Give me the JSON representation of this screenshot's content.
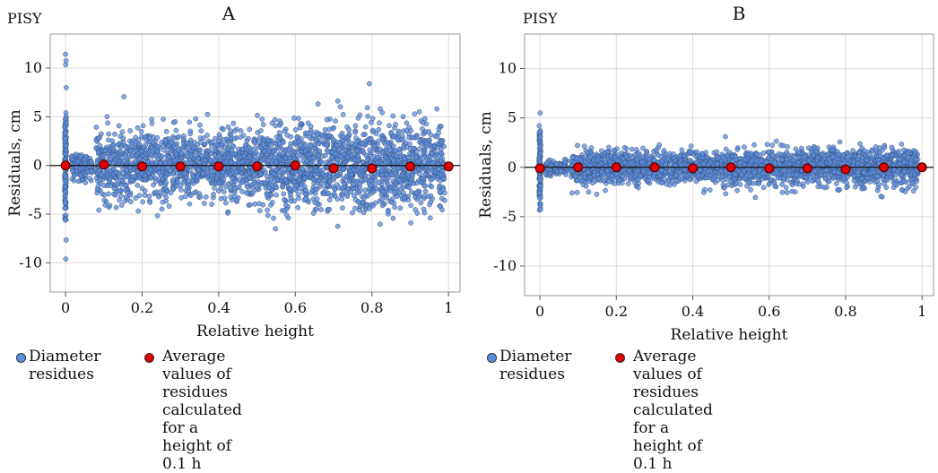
{
  "chart_data": [
    {
      "type": "scatter",
      "panel_label": "A",
      "corner_label": "PISY",
      "xlabel": "Relative height",
      "ylabel": "Residuals, cm",
      "xlim": [
        -0.04,
        1.03
      ],
      "ylim": [
        -13,
        13.5
      ],
      "xticks": [
        0,
        0.2,
        0.4,
        0.6,
        0.8,
        1
      ],
      "xtick_labels": [
        "0",
        "0.2",
        "0.4",
        "0.6",
        "0.8",
        "1"
      ],
      "yticks": [
        -10,
        -5,
        0,
        5,
        10
      ],
      "ytick_labels": [
        "-10",
        "-5",
        "0",
        "5",
        "10"
      ],
      "grid": true,
      "series": [
        {
          "name": "Diameter residues",
          "color": "#5b8ee0",
          "spread": {
            "base_band": [
              -11.8,
              11.7
            ],
            "sd_low": 0.9,
            "sd_mid": 1.8,
            "sd_high": 2.2,
            "n": 2600
          }
        },
        {
          "name": "Average values of residues calculated for a height of 0.1 h",
          "color": "#e00000",
          "x": [
            0,
            0.1,
            0.2,
            0.3,
            0.4,
            0.5,
            0.6,
            0.7,
            0.8,
            0.9,
            1.0
          ],
          "y": [
            0.0,
            0.1,
            -0.1,
            -0.1,
            -0.1,
            -0.1,
            0.0,
            -0.3,
            -0.3,
            -0.1,
            -0.1
          ]
        }
      ]
    },
    {
      "type": "scatter",
      "panel_label": "B",
      "corner_label": "PISY",
      "xlabel": "Relative height",
      "ylabel": "Residuals, cm",
      "xlim": [
        -0.04,
        1.03
      ],
      "ylim": [
        -13,
        13.5
      ],
      "xticks": [
        0,
        0.2,
        0.4,
        0.6,
        0.8,
        1
      ],
      "xtick_labels": [
        "0",
        "0.2",
        "0.4",
        "0.6",
        "0.8",
        "1"
      ],
      "yticks": [
        -10,
        -5,
        0,
        5,
        10
      ],
      "ytick_labels": [
        "-10",
        "-5",
        "0",
        "5",
        "10"
      ],
      "grid": true,
      "series": [
        {
          "name": "Diameter residues",
          "color": "#5b8ee0",
          "spread": {
            "base_band": [
              -8.1,
              4.5
            ],
            "sd_low": 0.5,
            "sd_mid": 0.8,
            "sd_high": 0.9,
            "n": 2600
          }
        },
        {
          "name": "Average values of residues calculated for a height of 0.1 h",
          "color": "#e00000",
          "x": [
            0,
            0.1,
            0.2,
            0.3,
            0.4,
            0.5,
            0.6,
            0.7,
            0.8,
            0.9,
            1.0
          ],
          "y": [
            -0.1,
            0.0,
            0.0,
            0.0,
            -0.1,
            0.0,
            -0.1,
            -0.1,
            -0.2,
            0.0,
            0.0
          ]
        }
      ]
    }
  ],
  "legend": {
    "blue_label": "Diameter\nresidues",
    "red_label": "Average values of residues calculated\nfor a height of 0.1 h"
  }
}
